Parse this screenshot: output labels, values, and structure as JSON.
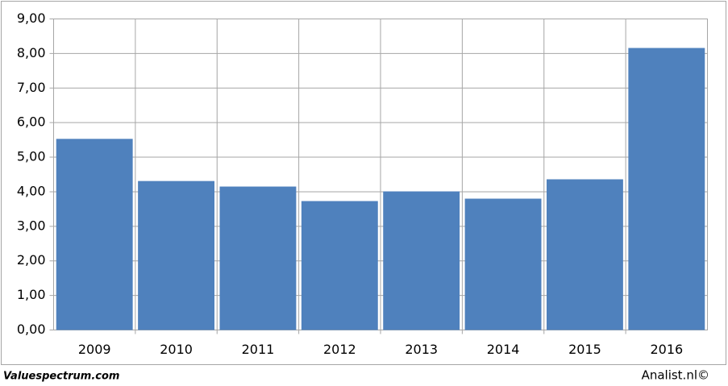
{
  "chart_data": {
    "type": "bar",
    "categories": [
      "2009",
      "2010",
      "2011",
      "2012",
      "2013",
      "2014",
      "2015",
      "2016"
    ],
    "values": [
      5.53,
      4.31,
      4.15,
      3.73,
      4.01,
      3.8,
      4.36,
      8.16
    ],
    "color": "#4f81bd",
    "ylim": [
      0,
      9
    ],
    "yticks": [
      {
        "value": 0,
        "label": "0,00"
      },
      {
        "value": 1,
        "label": "1,00"
      },
      {
        "value": 2,
        "label": "2,00"
      },
      {
        "value": 3,
        "label": "3,00"
      },
      {
        "value": 4,
        "label": "4,00"
      },
      {
        "value": 5,
        "label": "5,00"
      },
      {
        "value": 6,
        "label": "6,00"
      },
      {
        "value": 7,
        "label": "7,00"
      },
      {
        "value": 8,
        "label": "8,00"
      },
      {
        "value": 9,
        "label": "9,00"
      }
    ],
    "grid": true
  },
  "footer": {
    "left": "Valuespectrum.com",
    "right": "Analist.nl©"
  }
}
